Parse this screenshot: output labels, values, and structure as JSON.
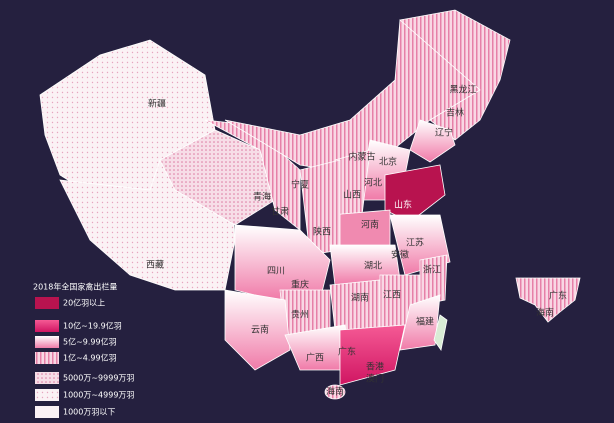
{
  "legend": {
    "title": "2018年全国家禽出栏量",
    "items": [
      "20亿羽以上",
      "10亿~19.9亿羽",
      "5亿~9.99亿羽",
      "1亿~4.99亿羽",
      "5000万~9999万羽",
      "1000万~4999万羽",
      "1000万羽以下"
    ]
  },
  "labels": [
    "新疆",
    "西藏",
    "青海",
    "甘肃",
    "宁夏",
    "内蒙古",
    "黑龙江",
    "吉林",
    "辽宁",
    "北京",
    "河北",
    "山西",
    "山东",
    "河南",
    "陕西",
    "四川",
    "重庆",
    "湖北",
    "安徽",
    "江苏",
    "浙江",
    "湖南",
    "江西",
    "贵州",
    "云南",
    "广西",
    "广东",
    "香港",
    "澳门",
    "福建",
    "海南"
  ],
  "inset_labels": [
    "广东",
    "海南"
  ]
}
